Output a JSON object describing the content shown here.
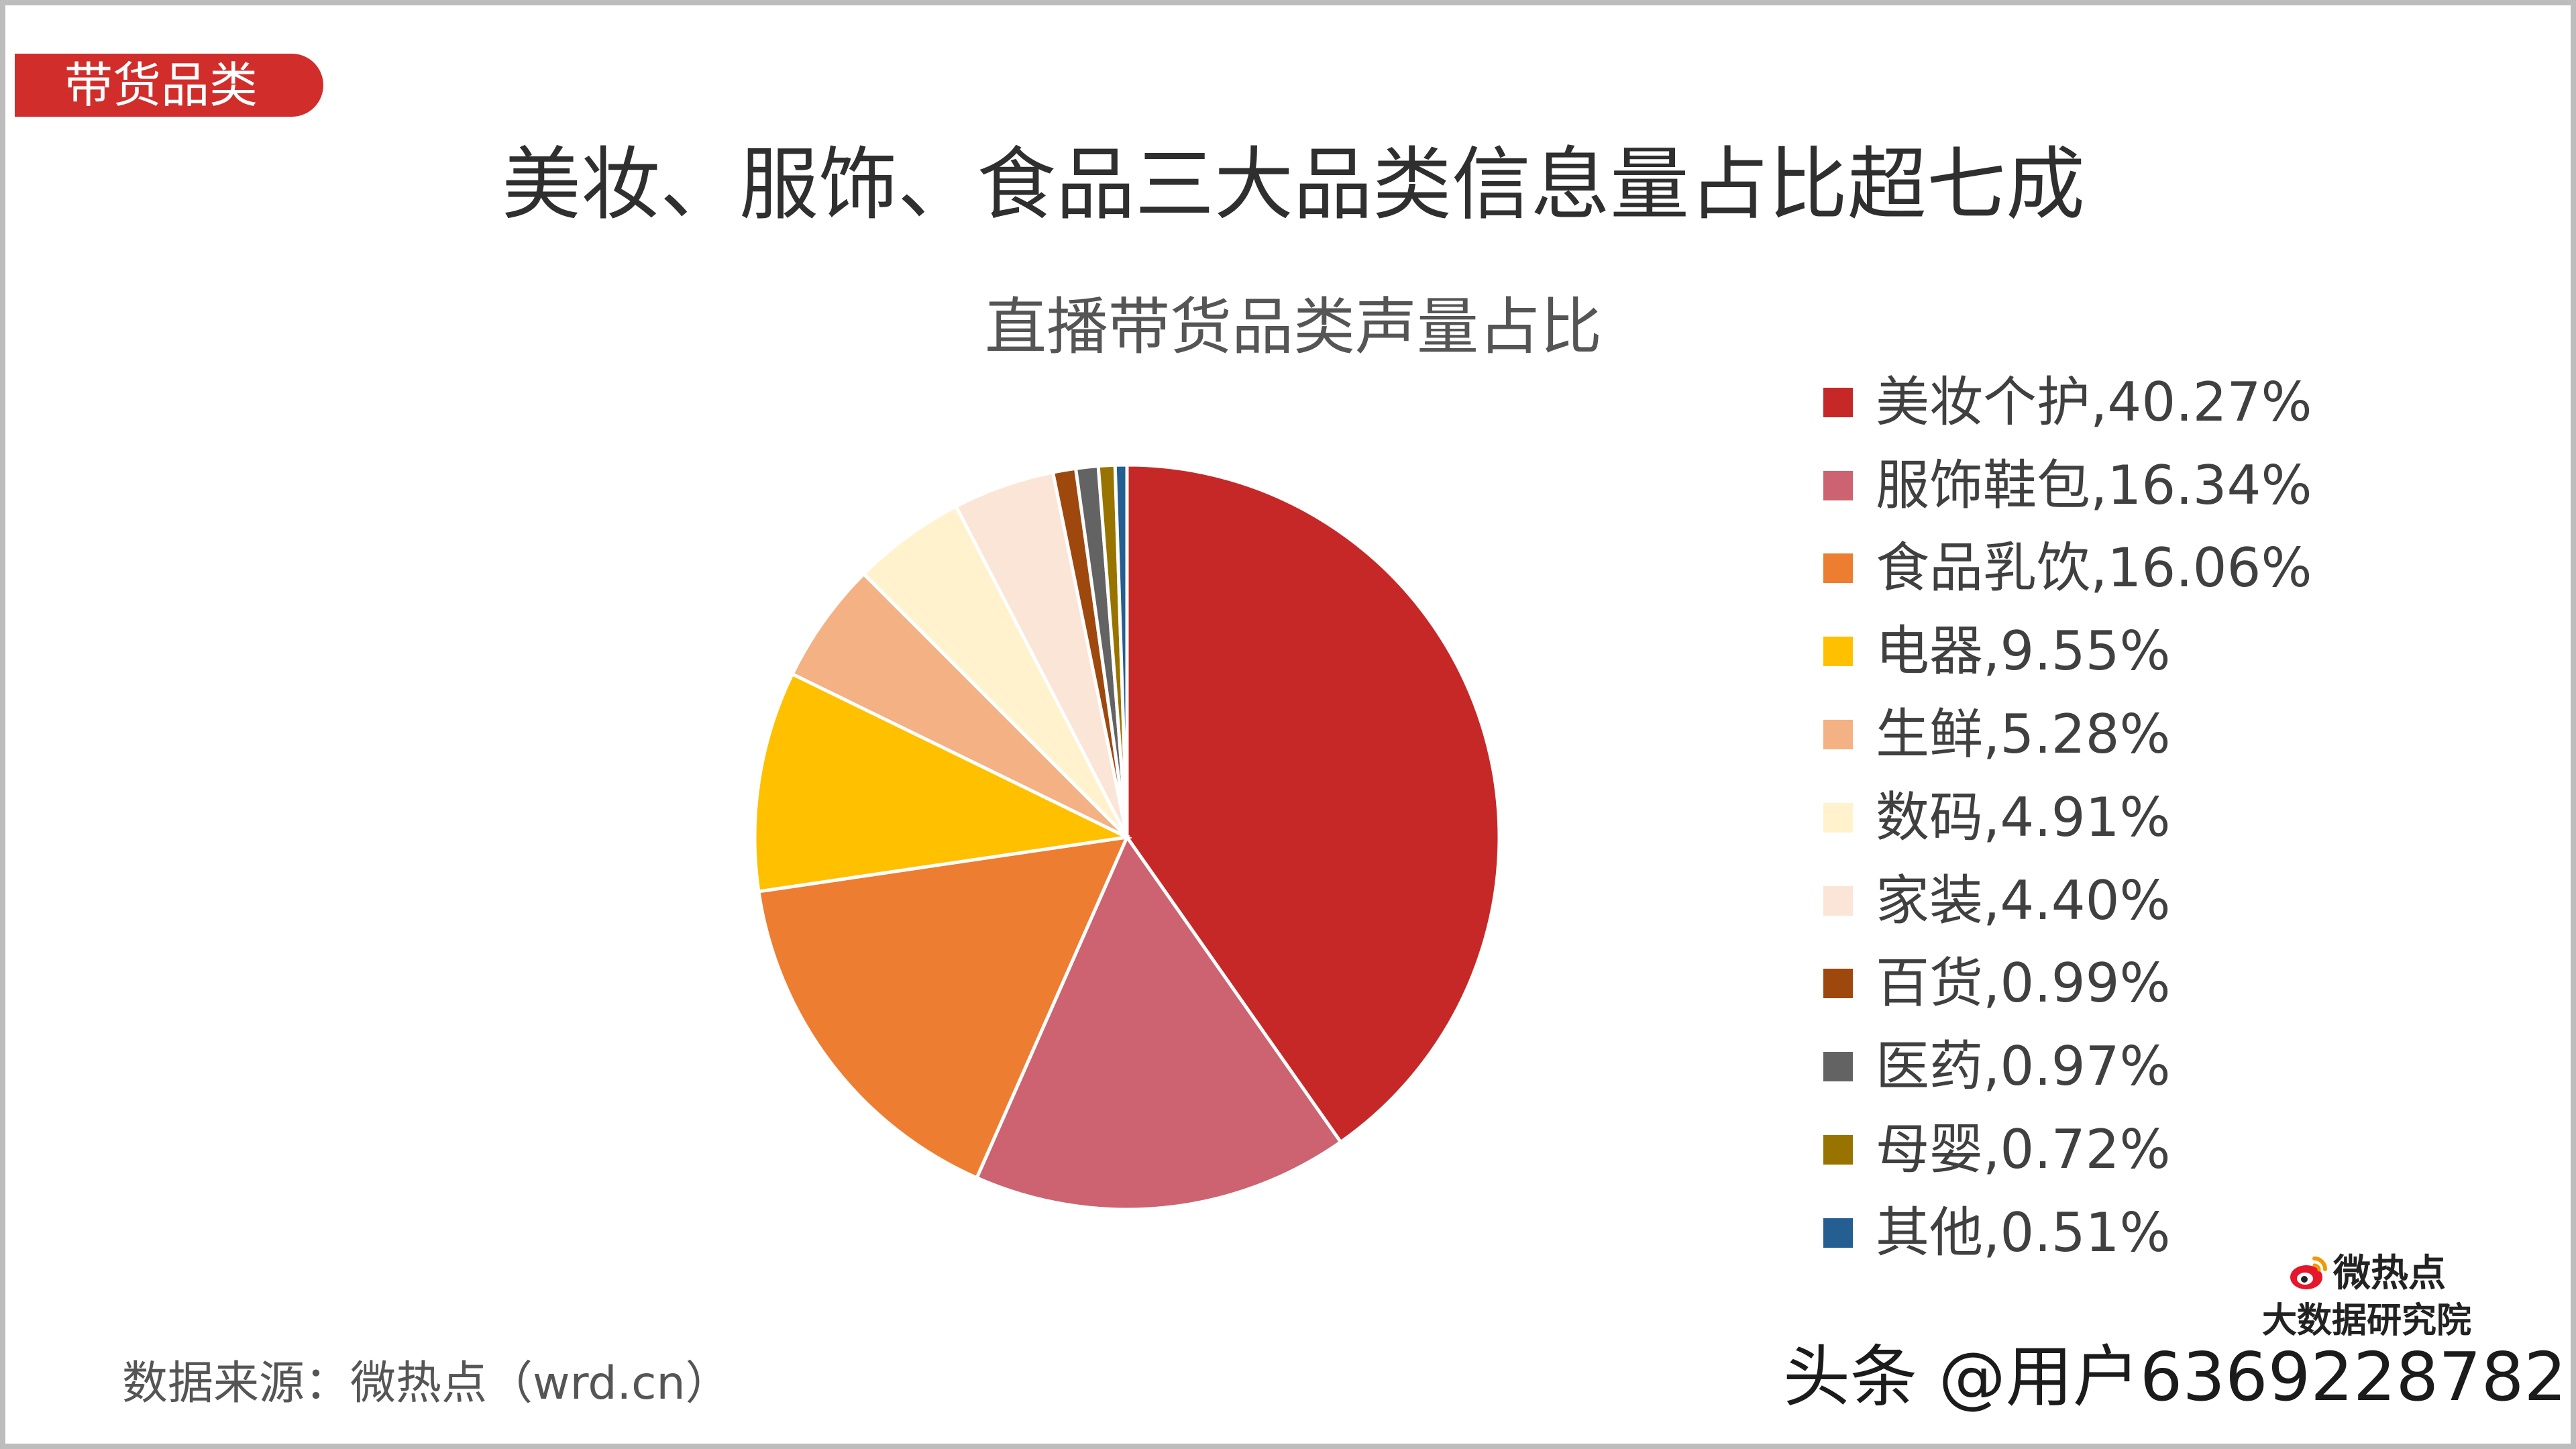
{
  "tag": "带货品类",
  "headline": "美妆、服饰、食品三大品类信息量占比超七成",
  "source": "数据来源：微热点（wrd.cn）",
  "brand": {
    "line1": "微热点",
    "line2": "大数据研究院",
    "icon": "weibo-eye-icon"
  },
  "watermark": "头条 @用户6369228782",
  "colors": {
    "tag": "#d12d2b"
  },
  "chart_data": {
    "type": "pie",
    "title": "直播带货品类声量占比",
    "legend_position": "right",
    "categories": [
      "美妆个护",
      "服饰鞋包",
      "食品乳饮",
      "电器",
      "生鲜",
      "数码",
      "家装",
      "百货",
      "医药",
      "母婴",
      "其他"
    ],
    "values": [
      40.27,
      16.34,
      16.06,
      9.55,
      5.28,
      4.91,
      4.4,
      0.99,
      0.97,
      0.72,
      0.51
    ],
    "unit": "%",
    "legend_labels": [
      "美妆个护,40.27%",
      "服饰鞋包,16.34%",
      "食品乳饮,16.06%",
      "电器,9.55%",
      "生鲜,5.28%",
      "数码,4.91%",
      "家装,4.40%",
      "百货,0.99%",
      "医药,0.97%",
      "母婴,0.72%",
      "其他,0.51%"
    ],
    "colors": [
      "#c62828",
      "#cd6370",
      "#ed7d31",
      "#ffc000",
      "#f4b183",
      "#fff2cc",
      "#fbe5d6",
      "#9e480e",
      "#636363",
      "#997300",
      "#255e91"
    ]
  }
}
